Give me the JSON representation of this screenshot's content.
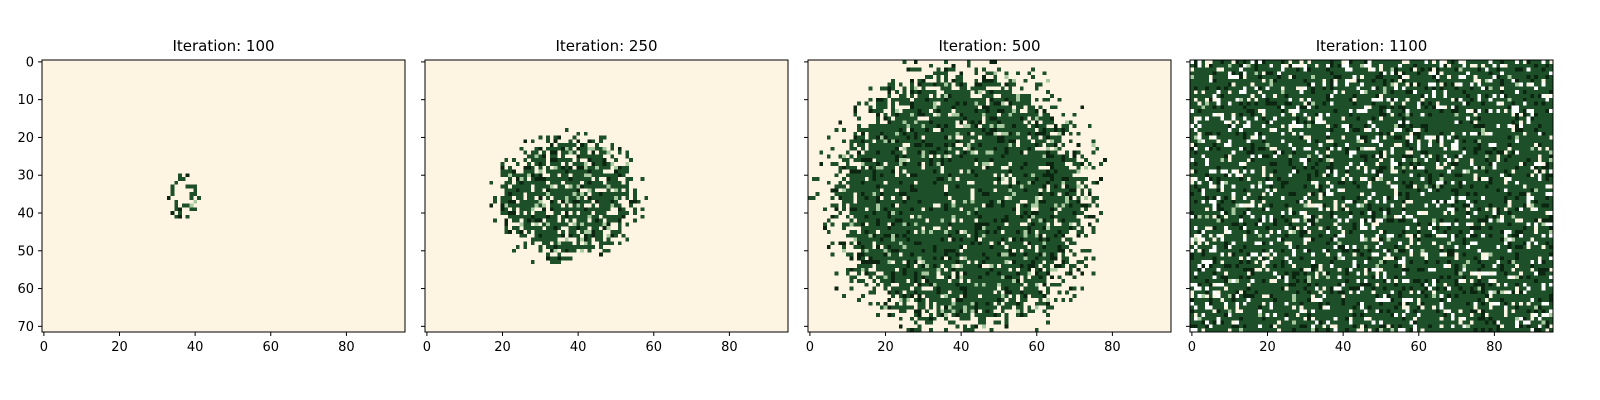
{
  "chart_data": {
    "type": "heatmap",
    "grid": {
      "rows": 72,
      "cols": 96
    },
    "x_ticks": [
      "0",
      "20",
      "40",
      "60",
      "80"
    ],
    "x_tick_values": [
      0,
      20,
      40,
      60,
      80
    ],
    "y_ticks": [
      "0",
      "10",
      "20",
      "30",
      "40",
      "50",
      "60",
      "70"
    ],
    "y_tick_values": [
      0,
      10,
      20,
      30,
      40,
      50,
      60,
      70
    ],
    "xlim": [
      -0.5,
      95.5
    ],
    "ylim": [
      71.5,
      -0.5
    ],
    "colors": {
      "empty": "#fdf5e2",
      "tree": "#1d5028",
      "dark": "#0b2510",
      "young": "#a9c9a0",
      "gap": "#ffffff"
    },
    "panels": [
      {
        "title": "Iteration: 100",
        "iteration": 100,
        "cluster": {
          "cx": 37,
          "cy": 35.5,
          "rx": 4.5,
          "ry": 6.5,
          "density": 0.45
        }
      },
      {
        "title": "Iteration: 250",
        "iteration": 250,
        "cluster": {
          "cx": 37,
          "cy": 36,
          "rx": 19,
          "ry": 17,
          "density": 0.78
        }
      },
      {
        "title": "Iteration: 500",
        "iteration": 500,
        "cluster": {
          "cx": 40,
          "cy": 36.5,
          "rx": 35,
          "ry": 36,
          "density": 0.9
        }
      },
      {
        "title": "Iteration: 1100",
        "iteration": 1100,
        "cluster": {
          "cx": 48,
          "cy": 36,
          "rx": 200,
          "ry": 200,
          "density": 0.82
        }
      }
    ]
  }
}
